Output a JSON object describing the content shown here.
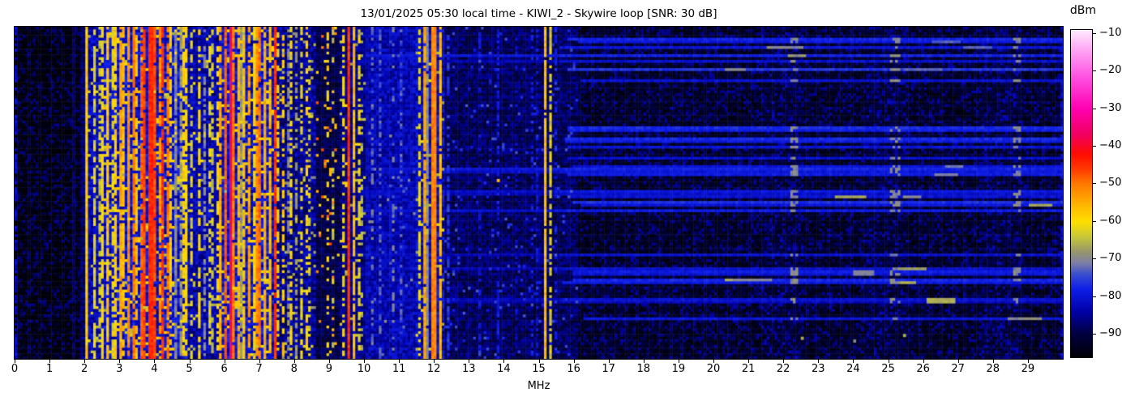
{
  "title": "13/01/2025 05:30 local time - KIWI_2 - Skywire loop [SNR: 30 dB]",
  "chart_data": {
    "type": "heatmap",
    "subtype": "radio-spectrum-waterfall",
    "title": "13/01/2025 05:30 local time - KIWI_2 - Skywire loop [SNR: 30 dB]",
    "xlabel": "MHz",
    "x_range": [
      0,
      30
    ],
    "x_ticks": [
      0,
      1,
      2,
      3,
      4,
      5,
      6,
      7,
      8,
      9,
      10,
      11,
      12,
      13,
      14,
      15,
      16,
      17,
      18,
      19,
      20,
      21,
      22,
      23,
      24,
      25,
      26,
      27,
      28,
      29
    ],
    "y_axis": {
      "type": "time",
      "ticks": [],
      "note": "vertical axis is time, no tick labels shown"
    },
    "grid": false,
    "colorbar": {
      "label": "dBm",
      "position": "right",
      "vmax": -9,
      "vmin": -96,
      "ticks": [
        {
          "v": -10,
          "label": "−10"
        },
        {
          "v": -20,
          "label": "−20"
        },
        {
          "v": -30,
          "label": "−30"
        },
        {
          "v": -40,
          "label": "−40"
        },
        {
          "v": -50,
          "label": "−50"
        },
        {
          "v": -60,
          "label": "−60"
        },
        {
          "v": -70,
          "label": "−70"
        },
        {
          "v": -80,
          "label": "−80"
        },
        {
          "v": -90,
          "label": "−90"
        }
      ]
    },
    "colormap_stops_dbm_hex": [
      [
        -96,
        "#000006"
      ],
      [
        -90,
        "#00003e"
      ],
      [
        -84,
        "#0000a6"
      ],
      [
        -78,
        "#0e1ee8"
      ],
      [
        -74,
        "#3a4ecf"
      ],
      [
        -71,
        "#7e7ea6"
      ],
      [
        -68,
        "#96966b"
      ],
      [
        -64,
        "#c8c838"
      ],
      [
        -60,
        "#ffdf00"
      ],
      [
        -55,
        "#ffb000"
      ],
      [
        -50,
        "#ff7a00"
      ],
      [
        -46,
        "#ff3a00"
      ],
      [
        -42,
        "#ff0d00"
      ],
      [
        -37,
        "#f2005e"
      ],
      [
        -30,
        "#ff00b0"
      ],
      [
        -22,
        "#ff4ce0"
      ],
      [
        -15,
        "#ff9cf2"
      ],
      [
        -9,
        "#ffeaff"
      ]
    ],
    "render": {
      "bins": 400,
      "rows": 120,
      "seed": 42
    },
    "noise_bands_f0_f1_lo_hi_spkDens_spkLvl_spkJit": [
      [
        0.0,
        1.9,
        -97,
        -93,
        0.3,
        -88,
        3
      ],
      [
        1.9,
        2.12,
        -91,
        -84,
        0.0,
        -88,
        0
      ],
      [
        2.12,
        2.47,
        -87,
        -78,
        0.05,
        -64,
        3
      ],
      [
        2.47,
        4.95,
        -85,
        -76,
        0.13,
        -62,
        5
      ],
      [
        4.95,
        5.85,
        -88,
        -79,
        0.06,
        -64,
        4
      ],
      [
        5.85,
        7.47,
        -85,
        -76,
        0.13,
        -62,
        5
      ],
      [
        7.47,
        8.6,
        -90,
        -80,
        0.05,
        -66,
        4
      ],
      [
        8.6,
        9.3,
        -93,
        -86,
        0.05,
        -54,
        7
      ],
      [
        9.3,
        10.05,
        -90,
        -82,
        0.04,
        -64,
        4
      ],
      [
        10.05,
        11.45,
        -87,
        -79,
        0.02,
        -72,
        3
      ],
      [
        11.45,
        12.3,
        -86,
        -77,
        0.05,
        -64,
        4
      ],
      [
        12.3,
        16.1,
        -92,
        -84,
        0.03,
        -76,
        3
      ],
      [
        16.1,
        30.01,
        -96,
        -89,
        0.22,
        -86,
        2.5
      ]
    ],
    "carriers_f_dbm_duty_widthBins": [
      [
        0.03,
        -82,
        0.6,
        1
      ],
      [
        1.62,
        -88,
        0.8,
        1
      ],
      [
        2.06,
        -58,
        1.0,
        1
      ],
      [
        2.24,
        -62,
        0.7,
        1
      ],
      [
        2.37,
        -64,
        0.55,
        1
      ],
      [
        2.5,
        -60,
        0.8,
        1
      ],
      [
        2.62,
        -57,
        0.85,
        1
      ],
      [
        2.74,
        -62,
        0.6,
        1
      ],
      [
        2.86,
        -58,
        0.85,
        1
      ],
      [
        2.97,
        -54,
        0.9,
        1
      ],
      [
        3.1,
        -57,
        0.8,
        1
      ],
      [
        3.22,
        -52,
        0.9,
        1
      ],
      [
        3.34,
        -50,
        0.9,
        1
      ],
      [
        3.46,
        -57,
        0.7,
        1
      ],
      [
        3.57,
        -48,
        0.85,
        1
      ],
      [
        3.69,
        -46,
        0.95,
        1
      ],
      [
        3.81,
        -44,
        1.0,
        2
      ],
      [
        3.96,
        -47,
        0.9,
        1
      ],
      [
        4.09,
        -52,
        0.8,
        1
      ],
      [
        4.21,
        -45,
        0.85,
        1
      ],
      [
        4.33,
        -50,
        0.8,
        1
      ],
      [
        4.46,
        -58,
        0.7,
        1
      ],
      [
        4.59,
        -70,
        0.9,
        1
      ],
      [
        4.69,
        -68,
        0.8,
        1
      ],
      [
        4.79,
        -58,
        0.75,
        1
      ],
      [
        4.91,
        -60,
        0.7,
        1
      ],
      [
        5.06,
        -63,
        0.5,
        1
      ],
      [
        5.26,
        -60,
        0.6,
        1
      ],
      [
        5.41,
        -70,
        0.6,
        1
      ],
      [
        5.53,
        -62,
        0.5,
        1
      ],
      [
        5.66,
        -64,
        0.45,
        1
      ],
      [
        5.78,
        -60,
        0.5,
        1
      ],
      [
        5.88,
        -55,
        0.85,
        1
      ],
      [
        5.98,
        -48,
        0.9,
        1
      ],
      [
        6.13,
        -37,
        1.0,
        1
      ],
      [
        6.23,
        -50,
        0.9,
        1
      ],
      [
        6.36,
        -55,
        0.85,
        1
      ],
      [
        6.46,
        -68,
        0.85,
        1
      ],
      [
        6.56,
        -57,
        0.8,
        1
      ],
      [
        6.69,
        -54,
        0.85,
        1
      ],
      [
        6.81,
        -60,
        0.75,
        1
      ],
      [
        6.91,
        -52,
        0.85,
        1
      ],
      [
        7.01,
        -49,
        0.9,
        1
      ],
      [
        7.13,
        -54,
        0.9,
        1
      ],
      [
        7.26,
        -56,
        0.85,
        1
      ],
      [
        7.41,
        -45,
        0.95,
        1
      ],
      [
        7.53,
        -60,
        0.5,
        1
      ],
      [
        7.66,
        -58,
        0.55,
        1
      ],
      [
        7.79,
        -70,
        0.6,
        1
      ],
      [
        7.91,
        -60,
        0.5,
        1
      ],
      [
        8.03,
        -68,
        0.55,
        1
      ],
      [
        8.16,
        -62,
        0.5,
        1
      ],
      [
        8.29,
        -58,
        0.45,
        1
      ],
      [
        8.41,
        -63,
        0.4,
        1
      ],
      [
        8.96,
        -60,
        0.3,
        1
      ],
      [
        9.11,
        -64,
        0.3,
        1
      ],
      [
        9.38,
        -60,
        0.6,
        1
      ],
      [
        9.5,
        -45,
        1.0,
        1
      ],
      [
        9.65,
        -56,
        0.9,
        1
      ],
      [
        9.8,
        -62,
        0.5,
        1
      ],
      [
        9.93,
        -66,
        0.4,
        1
      ],
      [
        10.18,
        -72,
        0.4,
        1
      ],
      [
        10.46,
        -73,
        0.4,
        1
      ],
      [
        10.81,
        -72,
        0.35,
        1
      ],
      [
        11.06,
        -74,
        0.35,
        1
      ],
      [
        11.53,
        -62,
        0.6,
        1
      ],
      [
        11.67,
        -54,
        0.9,
        1
      ],
      [
        11.79,
        -69,
        0.95,
        1
      ],
      [
        11.95,
        -51,
        1.0,
        2
      ],
      [
        12.16,
        -56,
        0.9,
        1
      ],
      [
        12.36,
        -76,
        0.5,
        1
      ],
      [
        13.26,
        -80,
        0.4,
        1
      ],
      [
        13.81,
        -79,
        0.5,
        1
      ],
      [
        14.36,
        -82,
        0.4,
        1
      ],
      [
        14.81,
        -79,
        0.45,
        1
      ],
      [
        14.96,
        -80,
        0.4,
        1
      ],
      [
        15.13,
        -56,
        0.95,
        1
      ],
      [
        15.31,
        -63,
        0.7,
        1
      ],
      [
        15.45,
        -78,
        0.4,
        1
      ],
      [
        29.9,
        -82,
        0.6,
        1
      ]
    ],
    "hot_dots_f_row_dbm": [
      [
        13.79,
        55,
        -56
      ],
      [
        22.5,
        112,
        -66
      ],
      [
        25.4,
        111,
        -66
      ],
      [
        24.0,
        113,
        -70
      ]
    ],
    "horizontal_streaks": {
      "probability": 0.27,
      "start_freq_options_mhz": [
        9.6,
        15.6
      ],
      "base_dbm_range": [
        -81,
        -76
      ],
      "end_mhz": 30,
      "hot_columns_mhz": [
        22.3,
        25.2,
        28.7
      ]
    },
    "faint_background_columns_mhz": [
      [
        21.4,
        22.6
      ],
      [
        24.4,
        25.6
      ],
      [
        27.6,
        28.8
      ]
    ]
  }
}
